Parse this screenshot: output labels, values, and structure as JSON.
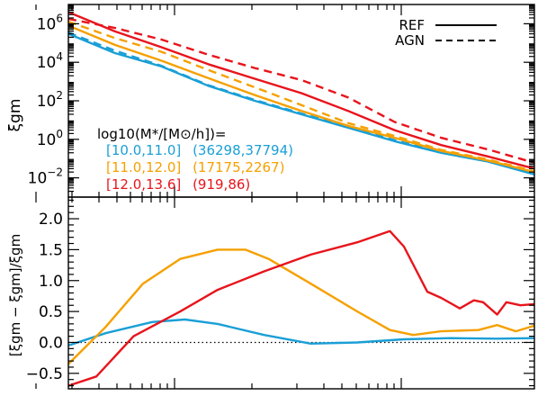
{
  "chart_data": [
    {
      "type": "line",
      "yscale": "log",
      "ylabel": "ξgm",
      "ylim": [
        0.001,
        10000000
      ],
      "xlim": [
        0,
        10
      ],
      "x_tick_labels": "none",
      "grid": false,
      "legend": {
        "placement": "top-right",
        "entries": [
          {
            "label": "REF",
            "linestyle": "solid"
          },
          {
            "label": "AGN",
            "linestyle": "dashed"
          }
        ]
      },
      "y_ticks": [
        {
          "value": 1000000,
          "base": "10",
          "exp": "6"
        },
        {
          "value": 10000,
          "base": "10",
          "exp": "4"
        },
        {
          "value": 100,
          "base": "10",
          "exp": "2"
        },
        {
          "value": 1,
          "base": "10",
          "exp": "0"
        },
        {
          "value": 0.01,
          "base": "10",
          "exp": "−2"
        }
      ],
      "annotation": {
        "header": "log10(M*/[M⊙/h])=",
        "rows": [
          {
            "range": "[10.0,11.0]",
            "counts": "(36298,37794)",
            "color": "#1a9fd6"
          },
          {
            "range": "[11.0,12.0]",
            "counts": "(17175,2267)",
            "color": "#f5a000"
          },
          {
            "range": "[12.0,13.6]",
            "counts": "(919,86)",
            "color": "#e8141c"
          }
        ]
      },
      "series": [
        {
          "color": "#1a9fd6",
          "linestyle": "solid",
          "x": [
            0,
            1,
            2,
            3,
            4,
            5,
            6,
            7,
            8,
            9,
            10
          ],
          "y": [
            300000,
            30000,
            6000,
            600,
            100,
            20,
            4,
            0.8,
            0.2,
            0.07,
            0.015
          ]
        },
        {
          "color": "#1a9fd6",
          "linestyle": "dashed",
          "x": [
            0,
            1,
            2,
            3,
            4,
            5,
            6,
            7,
            8,
            9,
            10
          ],
          "y": [
            350000,
            40000,
            6500,
            650,
            110,
            22,
            4.5,
            0.9,
            0.22,
            0.075,
            0.017
          ]
        },
        {
          "color": "#f5a000",
          "linestyle": "solid",
          "x": [
            0,
            1,
            2,
            3,
            4,
            5,
            6,
            7,
            8,
            9,
            10
          ],
          "y": [
            800000,
            80000,
            12000,
            1500,
            200,
            30,
            5,
            1.2,
            0.25,
            0.08,
            0.02
          ]
        },
        {
          "color": "#f5a000",
          "linestyle": "dashed",
          "x": [
            0,
            1,
            2,
            3,
            4,
            5,
            6,
            7,
            8,
            9,
            10
          ],
          "y": [
            1300000,
            180000,
            35000,
            4000,
            500,
            60,
            7,
            1.5,
            0.28,
            0.09,
            0.022
          ]
        },
        {
          "color": "#e8141c",
          "linestyle": "solid",
          "x": [
            0,
            1,
            2,
            3,
            4,
            5,
            6,
            7,
            8,
            9,
            10
          ],
          "y": [
            4000000,
            400000,
            60000,
            8000,
            1400,
            250,
            30,
            3,
            0.5,
            0.13,
            0.03
          ]
        },
        {
          "color": "#e8141c",
          "linestyle": "dashed",
          "x": [
            0,
            1,
            2,
            3,
            4,
            5,
            6,
            7,
            8,
            9,
            10
          ],
          "y": [
            1800000,
            600000,
            150000,
            25000,
            5000,
            1200,
            150,
            8,
            1.2,
            0.3,
            0.06
          ]
        }
      ]
    },
    {
      "type": "line",
      "ylabel": "[ξgm − ξgm]/ξgm",
      "ylim": [
        -0.75,
        2.35
      ],
      "xlim": [
        0,
        10
      ],
      "x_tick_labels": "none",
      "grid": false,
      "y_ticks": [
        {
          "value": -0.5,
          "label": "−0.5"
        },
        {
          "value": 0.0,
          "label": "0.0"
        },
        {
          "value": 0.5,
          "label": "0.5"
        },
        {
          "value": 1.0,
          "label": "1.0"
        },
        {
          "value": 1.5,
          "label": "1.5"
        },
        {
          "value": 2.0,
          "label": "2.0"
        }
      ],
      "reference_line": {
        "y": 0,
        "linestyle": "dotted"
      },
      "series": [
        {
          "color": "#1a9fd6",
          "linestyle": "solid",
          "x": [
            0,
            0.8,
            1.8,
            2.5,
            3.2,
            4.2,
            5.2,
            6.2,
            7.2,
            8.2,
            9.2,
            10
          ],
          "y": [
            -0.05,
            0.15,
            0.33,
            0.37,
            0.3,
            0.12,
            -0.02,
            0.0,
            0.05,
            0.07,
            0.06,
            0.07
          ]
        },
        {
          "color": "#f5a000",
          "linestyle": "solid",
          "x": [
            0,
            0.8,
            1.6,
            2.4,
            3.2,
            3.8,
            4.3,
            5.2,
            6.2,
            6.9,
            7.4,
            8.0,
            8.8,
            9.2,
            9.6,
            10
          ],
          "y": [
            -0.35,
            0.25,
            0.95,
            1.35,
            1.5,
            1.5,
            1.35,
            0.95,
            0.5,
            0.2,
            0.12,
            0.18,
            0.2,
            0.28,
            0.18,
            0.27
          ]
        },
        {
          "color": "#e8141c",
          "linestyle": "solid",
          "x": [
            0,
            0.6,
            1.4,
            2.4,
            3.2,
            4.2,
            5.2,
            6.2,
            6.9,
            7.2,
            7.7,
            8.0,
            8.4,
            8.7,
            8.9,
            9.2,
            9.4,
            9.7,
            10
          ],
          "y": [
            -0.7,
            -0.55,
            0.1,
            0.5,
            0.85,
            1.15,
            1.42,
            1.62,
            1.8,
            1.55,
            0.82,
            0.72,
            0.55,
            0.68,
            0.65,
            0.45,
            0.65,
            0.6,
            0.62
          ]
        }
      ]
    }
  ]
}
